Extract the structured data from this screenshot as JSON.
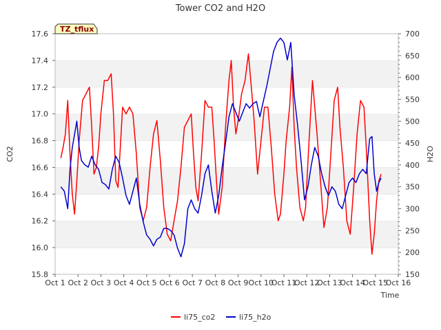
{
  "chart_data": {
    "type": "line",
    "title": "Tower CO2 and H2O",
    "site_tag": "TZ_tflux",
    "xlabel": "Time",
    "ylabel_left": "CO2",
    "ylabel_right": "H2O",
    "xlim": [
      1,
      16
    ],
    "ylim_left": [
      15.8,
      17.6
    ],
    "ylim_right": [
      150,
      700
    ],
    "x_ticks": [
      {
        "value": 1,
        "label": "Oct 1"
      },
      {
        "value": 2,
        "label": "Oct 2"
      },
      {
        "value": 3,
        "label": "Oct 3"
      },
      {
        "value": 4,
        "label": "Oct 4"
      },
      {
        "value": 5,
        "label": "Oct 5"
      },
      {
        "value": 6,
        "label": "Oct 6"
      },
      {
        "value": 7,
        "label": "Oct 7"
      },
      {
        "value": 8,
        "label": "Oct 8"
      },
      {
        "value": 9,
        "label": "Oct 9"
      },
      {
        "value": 10,
        "label": "Oct 10"
      },
      {
        "value": 11,
        "label": "Oct 11"
      },
      {
        "value": 12,
        "label": "Oct 12"
      },
      {
        "value": 13,
        "label": "Oct 13"
      },
      {
        "value": 14,
        "label": "Oct 14"
      },
      {
        "value": 15,
        "label": "Oct 15"
      },
      {
        "value": 16,
        "label": "Oct 16"
      }
    ],
    "y_ticks_left": [
      "15.8",
      "16.0",
      "16.2",
      "16.4",
      "16.6",
      "16.8",
      "17.0",
      "17.2",
      "17.4",
      "17.6"
    ],
    "y_ticks_right": [
      "150",
      "200",
      "250",
      "300",
      "350",
      "400",
      "450",
      "500",
      "550",
      "600",
      "650",
      "700"
    ],
    "grid": "horizontal bands",
    "legend_position": "bottom-center",
    "series": [
      {
        "name": "li75_co2",
        "axis": "left",
        "color": "#ff0000",
        "points": [
          [
            1.25,
            16.67
          ],
          [
            1.35,
            16.75
          ],
          [
            1.45,
            16.85
          ],
          [
            1.55,
            17.1
          ],
          [
            1.65,
            16.7
          ],
          [
            1.75,
            16.4
          ],
          [
            1.85,
            16.25
          ],
          [
            1.95,
            16.5
          ],
          [
            2.05,
            16.8
          ],
          [
            2.2,
            17.1
          ],
          [
            2.35,
            17.15
          ],
          [
            2.5,
            17.2
          ],
          [
            2.6,
            16.9
          ],
          [
            2.7,
            16.55
          ],
          [
            2.8,
            16.6
          ],
          [
            2.9,
            16.75
          ],
          [
            3.0,
            17.0
          ],
          [
            3.15,
            17.25
          ],
          [
            3.3,
            17.25
          ],
          [
            3.45,
            17.3
          ],
          [
            3.55,
            17.0
          ],
          [
            3.65,
            16.5
          ],
          [
            3.75,
            16.45
          ],
          [
            3.85,
            16.75
          ],
          [
            3.95,
            17.05
          ],
          [
            4.1,
            17.0
          ],
          [
            4.25,
            17.05
          ],
          [
            4.4,
            17.0
          ],
          [
            4.55,
            16.7
          ],
          [
            4.7,
            16.3
          ],
          [
            4.85,
            16.2
          ],
          [
            5.0,
            16.3
          ],
          [
            5.15,
            16.6
          ],
          [
            5.3,
            16.85
          ],
          [
            5.45,
            16.95
          ],
          [
            5.6,
            16.65
          ],
          [
            5.75,
            16.3
          ],
          [
            5.9,
            16.1
          ],
          [
            6.05,
            16.05
          ],
          [
            6.2,
            16.2
          ],
          [
            6.35,
            16.35
          ],
          [
            6.5,
            16.6
          ],
          [
            6.65,
            16.9
          ],
          [
            6.8,
            16.95
          ],
          [
            6.95,
            17.0
          ],
          [
            7.05,
            16.7
          ],
          [
            7.15,
            16.45
          ],
          [
            7.25,
            16.35
          ],
          [
            7.4,
            16.7
          ],
          [
            7.55,
            17.1
          ],
          [
            7.7,
            17.05
          ],
          [
            7.85,
            17.05
          ],
          [
            7.95,
            16.8
          ],
          [
            8.05,
            16.5
          ],
          [
            8.15,
            16.25
          ],
          [
            8.3,
            16.45
          ],
          [
            8.45,
            16.9
          ],
          [
            8.6,
            17.25
          ],
          [
            8.7,
            17.4
          ],
          [
            8.8,
            17.05
          ],
          [
            8.9,
            16.85
          ],
          [
            9.0,
            16.95
          ],
          [
            9.15,
            17.15
          ],
          [
            9.3,
            17.25
          ],
          [
            9.45,
            17.45
          ],
          [
            9.55,
            17.25
          ],
          [
            9.7,
            16.95
          ],
          [
            9.85,
            16.55
          ],
          [
            10.0,
            16.8
          ],
          [
            10.15,
            17.05
          ],
          [
            10.3,
            17.05
          ],
          [
            10.45,
            16.75
          ],
          [
            10.6,
            16.4
          ],
          [
            10.75,
            16.2
          ],
          [
            10.85,
            16.25
          ],
          [
            11.0,
            16.55
          ],
          [
            11.1,
            16.8
          ],
          [
            11.25,
            17.05
          ],
          [
            11.35,
            17.35
          ],
          [
            11.45,
            16.9
          ],
          [
            11.55,
            16.6
          ],
          [
            11.7,
            16.3
          ],
          [
            11.85,
            16.2
          ],
          [
            11.95,
            16.3
          ],
          [
            12.1,
            16.8
          ],
          [
            12.25,
            17.25
          ],
          [
            12.35,
            17.05
          ],
          [
            12.45,
            16.85
          ],
          [
            12.6,
            16.5
          ],
          [
            12.75,
            16.15
          ],
          [
            12.9,
            16.3
          ],
          [
            13.05,
            16.7
          ],
          [
            13.2,
            17.1
          ],
          [
            13.35,
            17.2
          ],
          [
            13.45,
            16.9
          ],
          [
            13.6,
            16.6
          ],
          [
            13.75,
            16.2
          ],
          [
            13.9,
            16.1
          ],
          [
            14.05,
            16.45
          ],
          [
            14.2,
            16.85
          ],
          [
            14.35,
            17.1
          ],
          [
            14.5,
            17.05
          ],
          [
            14.6,
            16.75
          ],
          [
            14.75,
            16.2
          ],
          [
            14.85,
            15.95
          ],
          [
            14.95,
            16.1
          ],
          [
            15.05,
            16.35
          ],
          [
            15.15,
            16.5
          ],
          [
            15.25,
            16.55
          ]
        ]
      },
      {
        "name": "li75_h2o",
        "axis": "right",
        "color": "#0000cc",
        "points": [
          [
            1.25,
            350
          ],
          [
            1.4,
            340
          ],
          [
            1.55,
            300
          ],
          [
            1.65,
            390
          ],
          [
            1.75,
            440
          ],
          [
            1.85,
            470
          ],
          [
            1.95,
            500
          ],
          [
            2.05,
            440
          ],
          [
            2.15,
            410
          ],
          [
            2.3,
            400
          ],
          [
            2.45,
            395
          ],
          [
            2.6,
            420
          ],
          [
            2.75,
            400
          ],
          [
            2.9,
            390
          ],
          [
            3.05,
            360
          ],
          [
            3.2,
            355
          ],
          [
            3.35,
            345
          ],
          [
            3.5,
            390
          ],
          [
            3.65,
            420
          ],
          [
            3.8,
            405
          ],
          [
            3.95,
            370
          ],
          [
            4.1,
            330
          ],
          [
            4.25,
            310
          ],
          [
            4.4,
            340
          ],
          [
            4.55,
            370
          ],
          [
            4.7,
            310
          ],
          [
            4.85,
            270
          ],
          [
            5.0,
            240
          ],
          [
            5.15,
            230
          ],
          [
            5.3,
            215
          ],
          [
            5.45,
            230
          ],
          [
            5.6,
            235
          ],
          [
            5.75,
            255
          ],
          [
            5.9,
            255
          ],
          [
            6.05,
            250
          ],
          [
            6.2,
            240
          ],
          [
            6.35,
            210
          ],
          [
            6.5,
            190
          ],
          [
            6.65,
            220
          ],
          [
            6.8,
            300
          ],
          [
            6.95,
            320
          ],
          [
            7.1,
            300
          ],
          [
            7.25,
            290
          ],
          [
            7.4,
            330
          ],
          [
            7.55,
            380
          ],
          [
            7.7,
            400
          ],
          [
            7.85,
            340
          ],
          [
            8.0,
            290
          ],
          [
            8.15,
            330
          ],
          [
            8.3,
            395
          ],
          [
            8.45,
            450
          ],
          [
            8.6,
            510
          ],
          [
            8.75,
            540
          ],
          [
            8.9,
            520
          ],
          [
            9.05,
            500
          ],
          [
            9.2,
            520
          ],
          [
            9.35,
            540
          ],
          [
            9.5,
            530
          ],
          [
            9.65,
            540
          ],
          [
            9.8,
            545
          ],
          [
            9.95,
            510
          ],
          [
            10.1,
            545
          ],
          [
            10.25,
            580
          ],
          [
            10.4,
            620
          ],
          [
            10.55,
            660
          ],
          [
            10.7,
            680
          ],
          [
            10.85,
            690
          ],
          [
            11.0,
            680
          ],
          [
            11.15,
            640
          ],
          [
            11.3,
            680
          ],
          [
            11.45,
            560
          ],
          [
            11.6,
            490
          ],
          [
            11.75,
            410
          ],
          [
            11.9,
            320
          ],
          [
            12.05,
            350
          ],
          [
            12.2,
            400
          ],
          [
            12.35,
            440
          ],
          [
            12.5,
            420
          ],
          [
            12.65,
            380
          ],
          [
            12.8,
            350
          ],
          [
            12.95,
            330
          ],
          [
            13.1,
            350
          ],
          [
            13.25,
            340
          ],
          [
            13.4,
            310
          ],
          [
            13.55,
            300
          ],
          [
            13.7,
            330
          ],
          [
            13.85,
            360
          ],
          [
            14.0,
            370
          ],
          [
            14.15,
            360
          ],
          [
            14.3,
            380
          ],
          [
            14.45,
            390
          ],
          [
            14.6,
            380
          ],
          [
            14.75,
            460
          ],
          [
            14.85,
            465
          ],
          [
            14.95,
            380
          ],
          [
            15.05,
            340
          ],
          [
            15.15,
            360
          ],
          [
            15.25,
            370
          ]
        ]
      }
    ]
  }
}
